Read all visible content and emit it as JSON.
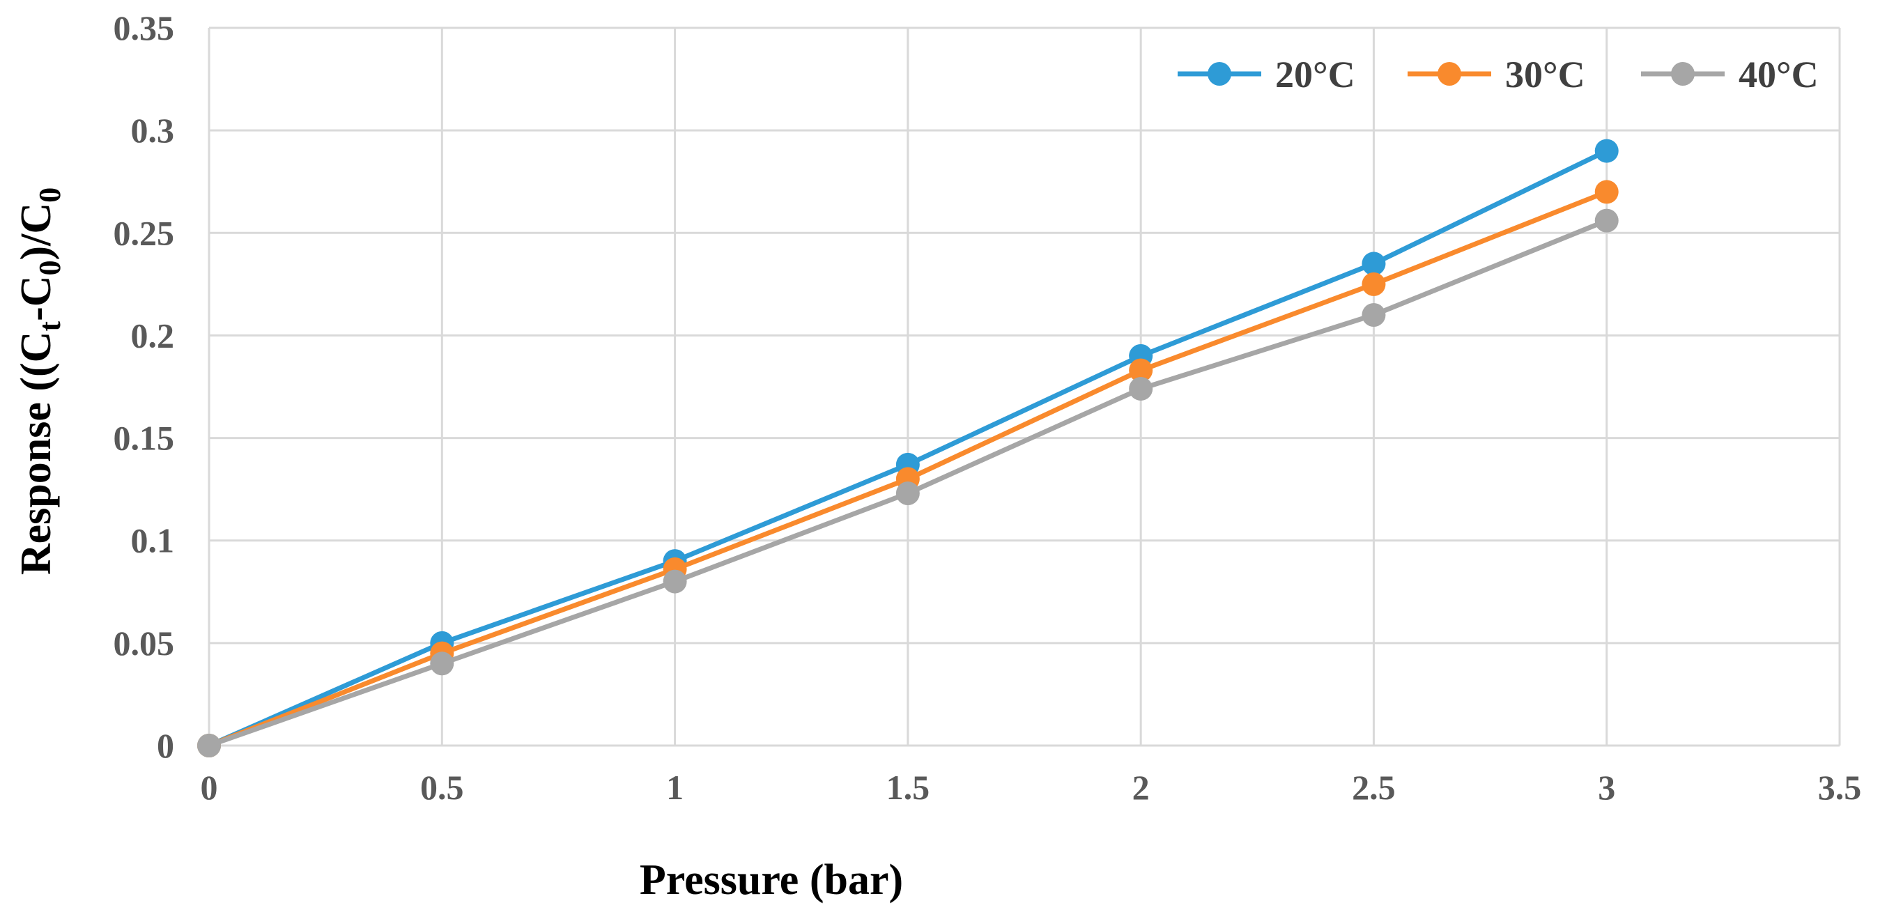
{
  "chart_data": {
    "type": "line",
    "title": "",
    "xlabel": "Pressure (bar)",
    "ylabel": {
      "prefix": "Response ((C",
      "sub1": "t",
      "mid1": "-C",
      "sub2": "0",
      "mid2": ")/C",
      "sub3": "0"
    },
    "xlim": [
      0,
      3.5
    ],
    "ylim": [
      0,
      0.35
    ],
    "x_ticks": [
      0,
      0.5,
      1,
      1.5,
      2,
      2.5,
      3,
      3.5
    ],
    "x_tick_labels": [
      "0",
      "0.5",
      "1",
      "1.5",
      "2",
      "2.5",
      "3",
      "3.5"
    ],
    "y_ticks": [
      0,
      0.05,
      0.1,
      0.15,
      0.2,
      0.25,
      0.3,
      0.35
    ],
    "y_tick_labels": [
      "0",
      "0.05",
      "0.1",
      "0.15",
      "0.2",
      "0.25",
      "0.3",
      "0.35"
    ],
    "grid": true,
    "legend_position": "top-right",
    "x": [
      0,
      0.5,
      1,
      1.5,
      2,
      2.5,
      3
    ],
    "series": [
      {
        "name": "20°C",
        "color": "#2e9bd6",
        "values": [
          0,
          0.05,
          0.09,
          0.137,
          0.19,
          0.235,
          0.29
        ]
      },
      {
        "name": "30°C",
        "color": "#f98a2d",
        "values": [
          0,
          0.045,
          0.086,
          0.13,
          0.183,
          0.225,
          0.27
        ]
      },
      {
        "name": "40°C",
        "color": "#a6a6a6",
        "values": [
          0,
          0.04,
          0.08,
          0.123,
          0.174,
          0.21,
          0.256
        ]
      }
    ]
  }
}
